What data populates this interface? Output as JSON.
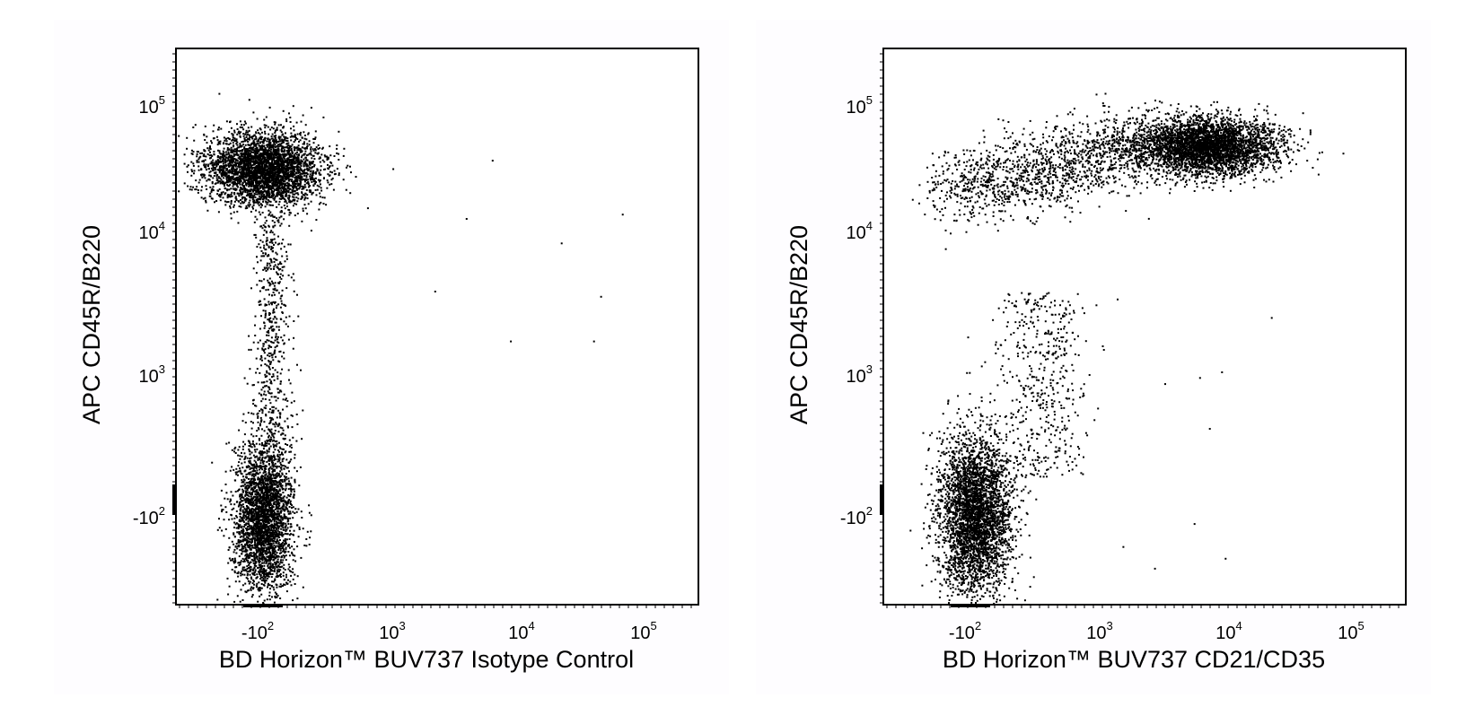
{
  "chart_data": [
    {
      "type": "scatter",
      "title": "",
      "xlabel": "BD Horizon™ BUV737 Isotype Control",
      "ylabel": "APC CD45R/B220",
      "x_scale": "biexponential",
      "y_scale": "biexponential",
      "x_ticks": [
        {
          "base": "-10",
          "exp": "2"
        },
        {
          "base": "10",
          "exp": "3"
        },
        {
          "base": "10",
          "exp": "4"
        },
        {
          "base": "10",
          "exp": "5"
        }
      ],
      "y_ticks": [
        {
          "base": "10",
          "exp": "5"
        },
        {
          "base": "10",
          "exp": "4"
        },
        {
          "base": "10",
          "exp": "3"
        },
        {
          "base": "-10",
          "exp": "2"
        }
      ],
      "populations": [
        {
          "name": "",
          "x_center": -100,
          "y_center": 30000,
          "count": 3600
        },
        {
          "name": "",
          "x_center": -100,
          "y_center": -120,
          "count": 3000
        },
        {
          "name": "",
          "x_center": -80,
          "y_center": 3000,
          "count": 550
        }
      ],
      "outliers": [
        [
          3500,
          12000
        ],
        [
          5500,
          35000
        ],
        [
          7500,
          1700
        ],
        [
          19000,
          8000
        ],
        [
          35000,
          1700
        ],
        [
          40000,
          3500
        ],
        [
          60000,
          13000
        ],
        [
          2000,
          3800
        ],
        [
          900,
          30000
        ]
      ],
      "grid": false,
      "legend": "none"
    },
    {
      "type": "scatter",
      "title": "",
      "xlabel": "BD Horizon™ BUV737 CD21/CD35",
      "ylabel": "APC CD45R/B220",
      "x_scale": "biexponential",
      "y_scale": "biexponential",
      "x_ticks": [
        {
          "base": "-10",
          "exp": "2"
        },
        {
          "base": "10",
          "exp": "3"
        },
        {
          "base": "10",
          "exp": "4"
        },
        {
          "base": "10",
          "exp": "5"
        }
      ],
      "y_ticks": [
        {
          "base": "10",
          "exp": "5"
        },
        {
          "base": "10",
          "exp": "4"
        },
        {
          "base": "10",
          "exp": "3"
        },
        {
          "base": "-10",
          "exp": "2"
        }
      ],
      "populations": [
        {
          "name": "",
          "x_center": 6000,
          "y_center": 45000,
          "count": 3800
        },
        {
          "name": "",
          "x_center": 500,
          "y_center": 20000,
          "count": 1400
        },
        {
          "name": "",
          "x_center": -80,
          "y_center": -110,
          "count": 3600
        },
        {
          "name": "",
          "x_center": 300,
          "y_center": 2000,
          "count": 500
        }
      ],
      "outliers": [
        [
          3000,
          800
        ],
        [
          5500,
          900
        ],
        [
          6500,
          300
        ],
        [
          8000,
          1000
        ],
        [
          20000,
          2500
        ],
        [
          8500,
          -400
        ],
        [
          5000,
          -150
        ],
        [
          1400,
          -300
        ],
        [
          2500,
          -500
        ]
      ],
      "grid": false,
      "legend": "none"
    }
  ]
}
